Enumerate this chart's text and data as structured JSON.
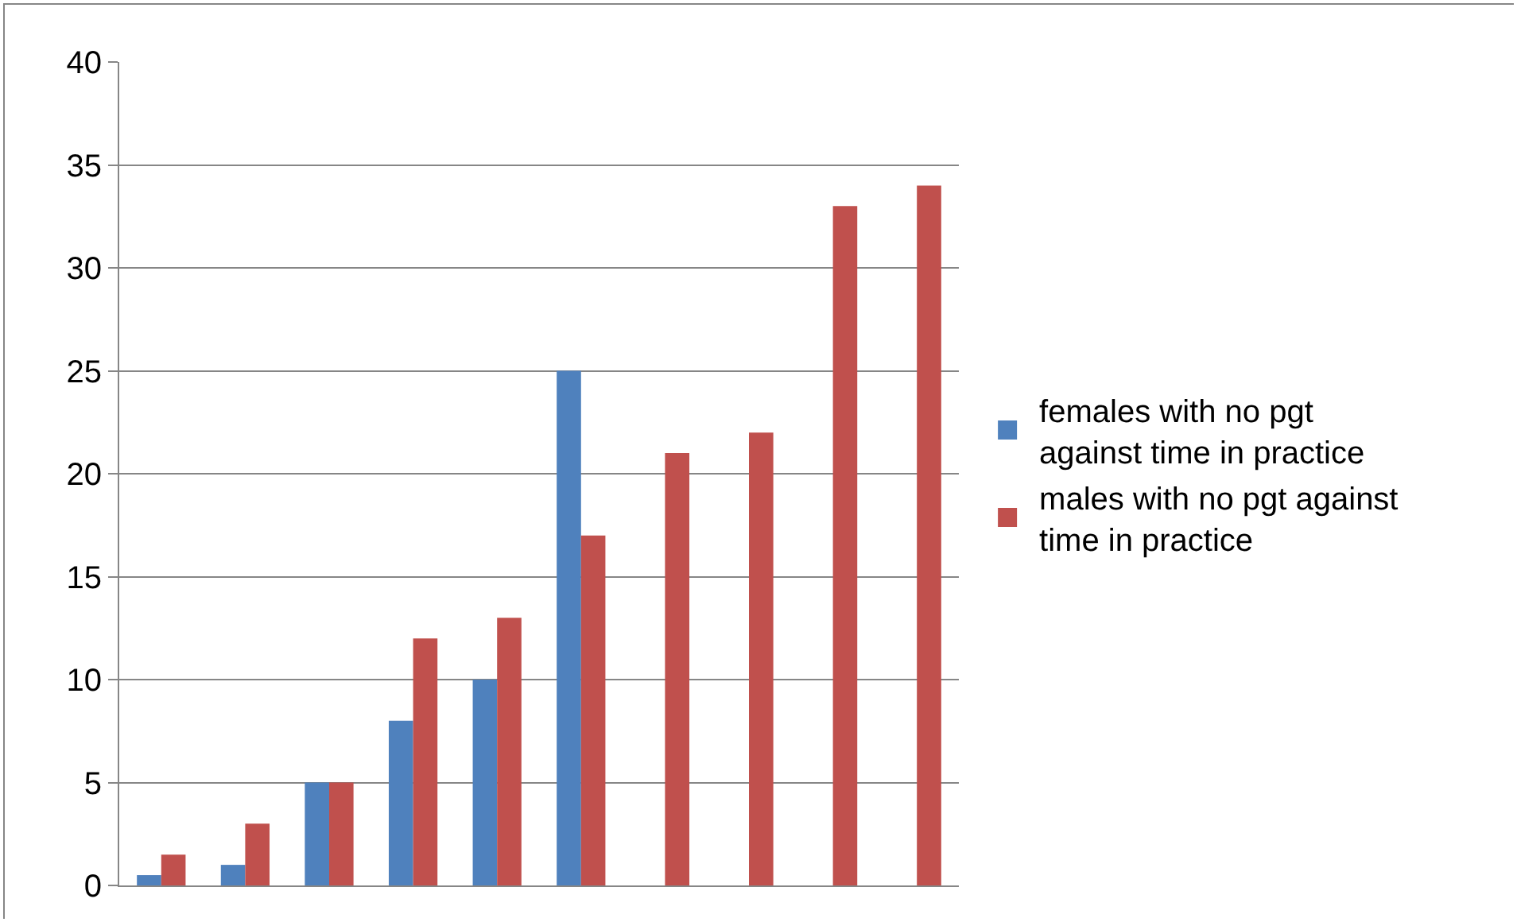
{
  "chart_data": {
    "type": "bar",
    "categories": [
      null,
      null,
      null,
      null,
      null,
      null,
      null,
      null,
      null,
      null
    ],
    "series": [
      {
        "name": "females with no pgt against time in practice",
        "color": "#4f81bd",
        "values": [
          0.5,
          1,
          5,
          8,
          10,
          25,
          null,
          null,
          null,
          null
        ]
      },
      {
        "name": "males with no pgt against time in practice",
        "color": "#c0504d",
        "values": [
          1.5,
          3,
          5,
          12,
          13,
          17,
          21,
          22,
          33,
          34
        ]
      }
    ],
    "ylim": [
      0,
      40
    ],
    "yticks": [
      0,
      5,
      10,
      15,
      20,
      25,
      30,
      35,
      40
    ],
    "grid": "y",
    "legend": "right",
    "tick_labels": "y"
  }
}
